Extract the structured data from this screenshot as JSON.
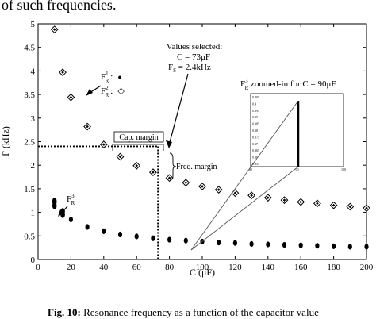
{
  "header_text": "of such frequencies.",
  "caption": {
    "label": "Fig. 10:",
    "text": " Resonance frequency as a function of the capacitor value"
  },
  "chart_data": {
    "type": "scatter",
    "xlabel": "C (μF)",
    "ylabel": "F (kHz)",
    "xlim": [
      0,
      200
    ],
    "ylim": [
      0,
      5
    ],
    "x_ticks": [
      "0",
      "20",
      "40",
      "60",
      "80",
      "100",
      "120",
      "140",
      "160",
      "180",
      "200"
    ],
    "y_ticks": [
      "0",
      "0.5",
      "1",
      "1.5",
      "2",
      "2.5",
      "3",
      "3.5",
      "4",
      "4.5",
      "5"
    ],
    "grid": false,
    "series": [
      {
        "name": "F_R^2",
        "marker": "diamond",
        "x": [
          10,
          15,
          20,
          30,
          40,
          50,
          60,
          70,
          80,
          90,
          100,
          110,
          120,
          130,
          140,
          150,
          160,
          170,
          180,
          190,
          200
        ],
        "y": [
          4.88,
          3.97,
          3.44,
          2.82,
          2.44,
          2.18,
          1.99,
          1.85,
          1.73,
          1.63,
          1.55,
          1.48,
          1.41,
          1.36,
          1.31,
          1.26,
          1.22,
          1.19,
          1.15,
          1.12,
          1.09
        ]
      },
      {
        "name": "F_R^1",
        "marker": "dot",
        "x": [
          10,
          15,
          20,
          30,
          40,
          50,
          60,
          70,
          80,
          90,
          100,
          110,
          120,
          130,
          140,
          150,
          160,
          170,
          180,
          190,
          200
        ],
        "y": [
          1.2,
          0.98,
          0.85,
          0.69,
          0.6,
          0.53,
          0.49,
          0.45,
          0.42,
          0.4,
          0.38,
          0.36,
          0.35,
          0.33,
          0.32,
          0.31,
          0.3,
          0.29,
          0.28,
          0.27,
          0.27
        ]
      },
      {
        "name": "F_R^3",
        "marker": "dot",
        "x": [
          10,
          10,
          15,
          15
        ],
        "y": [
          1.14,
          1.24,
          0.95,
          1.02
        ]
      }
    ],
    "legend": {
      "f1_label": "F",
      "f1_sup": "1",
      "f1_sub": "R",
      "f1_symbol": "●",
      "f2_label": "F",
      "f2_sup": "2",
      "f2_sub": "R",
      "f2_symbol": "◇",
      "f3_label": "F",
      "f3_sup": "3",
      "f3_sub": "R",
      "colon": ":"
    },
    "selected_point": {
      "x": 73,
      "y": 2.4
    },
    "annotations": {
      "values_line1": "Values selected:",
      "values_line2": "C = 73μF",
      "values_line3_prefix": "F",
      "values_line3_sub": "S",
      "values_line3_suffix": " = 2.4kHz",
      "cap_margin": "Cap. margin",
      "freq_margin": "Freq. margin",
      "zoom_prefix": "F",
      "zoom_sub": "R",
      "zoom_sup": "3",
      "zoom_suffix": " zoomed-in for C = 90μF"
    },
    "inset": {
      "x_ticks": [
        "80",
        "90",
        "100"
      ],
      "y_ticks": [
        "0.405",
        "0.4",
        "0.395",
        "0.39",
        "0.385",
        "0.38",
        "0.375",
        "0.37",
        "0.365",
        "0.36",
        "0.355"
      ],
      "series": {
        "x": [
          90,
          90
        ],
        "y": [
          0.355,
          0.402
        ]
      }
    }
  }
}
